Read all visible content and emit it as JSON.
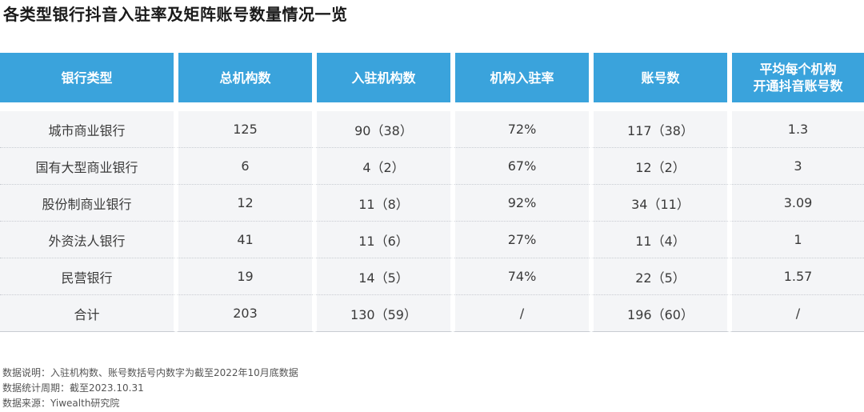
{
  "title": "各类型银行抖音入驻率及矩阵账号数量情况一览",
  "table": {
    "headers": [
      "银行类型",
      "总机构数",
      "入驻机构数",
      "机构入驻率",
      "账号数",
      "平均每个机构\n开通抖音账号数"
    ],
    "rows": [
      [
        "城市商业银行",
        "125",
        "90（38）",
        "72%",
        "117（38）",
        "1.3"
      ],
      [
        "国有大型商业银行",
        "6",
        "4（2）",
        "67%",
        "12（2）",
        "3"
      ],
      [
        "股份制商业银行",
        "12",
        "11（8）",
        "92%",
        "34（11）",
        "3.09"
      ],
      [
        "外资法人银行",
        "41",
        "11（6）",
        "27%",
        "11（4）",
        "1"
      ],
      [
        "民营银行",
        "19",
        "14（5）",
        "74%",
        "22（5）",
        "1.57"
      ],
      [
        "合计",
        "203",
        "130（59）",
        "/",
        "196（60）",
        "/"
      ]
    ]
  },
  "notes": [
    "数据说明：入驻机构数、账号数括号内数字为截至2022年10月底数据",
    "数据统计周期：截至2023.10.31",
    "数据来源：Yiwealth研究院"
  ],
  "colors": {
    "header_bg": "#3aa3dc",
    "cell_bg": "#f4f5f7"
  }
}
